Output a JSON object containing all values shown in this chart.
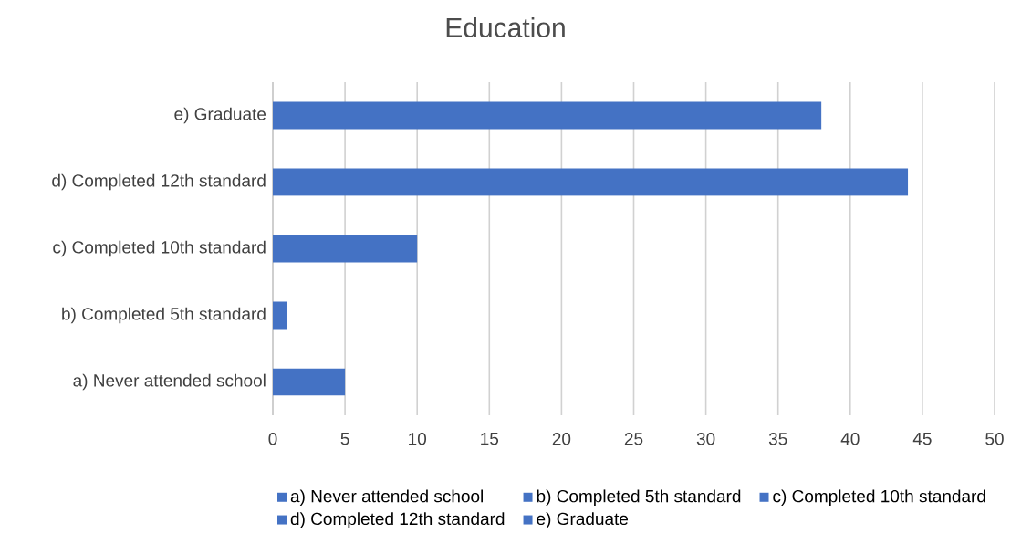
{
  "chart_data": {
    "type": "bar",
    "orientation": "horizontal",
    "title": "Education",
    "categories": [
      "e) Graduate",
      "d) Completed 12th standard",
      "c) Completed 10th standard",
      "b) Completed 5th standard",
      "a) Never attended school"
    ],
    "series": [
      {
        "name": "a) Never attended school",
        "color": "#4472c4",
        "values": [
          null,
          null,
          null,
          null,
          5
        ]
      },
      {
        "name": "b) Completed 5th standard",
        "color": "#4472c4",
        "values": [
          null,
          null,
          null,
          1,
          null
        ]
      },
      {
        "name": "c) Completed 10th standard",
        "color": "#4472c4",
        "values": [
          null,
          null,
          10,
          null,
          null
        ]
      },
      {
        "name": "d) Completed 12th standard",
        "color": "#4472c4",
        "values": [
          null,
          44,
          null,
          null,
          null
        ]
      },
      {
        "name": "e) Graduate",
        "color": "#4472c4",
        "values": [
          38,
          null,
          null,
          null,
          null
        ]
      }
    ],
    "xlim": [
      0,
      50
    ],
    "xticks": [
      0,
      5,
      10,
      15,
      20,
      25,
      30,
      35,
      40,
      45,
      50
    ],
    "grid": "x",
    "legend": "bottom"
  }
}
